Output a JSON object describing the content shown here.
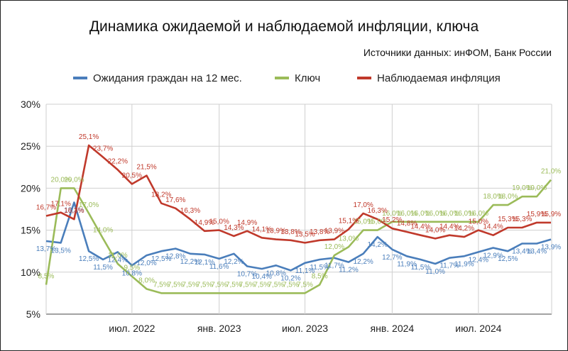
{
  "chart_data": {
    "type": "line",
    "title": "Динамика ожидаемой и наблюдаемой инфляции, ключа",
    "subtitle": "Источники данных: инФОМ, Банк России",
    "xlabel": "",
    "ylabel": "",
    "ylim": [
      5,
      30
    ],
    "y_ticks": [
      "5%",
      "10%",
      "15%",
      "20%",
      "25%",
      "30%"
    ],
    "x_tick_labels": [
      "июл. 2022",
      "янв. 2023",
      "июл. 2023",
      "янв. 2024",
      "июл. 2024"
    ],
    "grid": true,
    "legend_position": "top",
    "series": [
      {
        "name": "Ожидания граждан на 12 мес.",
        "color": "#4a7ebb",
        "x": [
          "2022-01-01",
          "2022-02-01",
          "2022-03-01",
          "2022-04-01",
          "2022-05-01",
          "2022-06-01",
          "2022-07-01",
          "2022-08-01",
          "2022-09-01",
          "2022-10-01",
          "2022-11-01",
          "2022-12-01",
          "2023-01-01",
          "2023-02-01",
          "2023-03-01",
          "2023-04-01",
          "2023-05-01",
          "2023-06-01",
          "2023-07-01",
          "2023-08-01",
          "2023-09-01",
          "2023-10-01",
          "2023-11-01",
          "2023-12-01",
          "2024-01-01",
          "2024-02-01",
          "2024-03-01",
          "2024-04-01",
          "2024-05-01",
          "2024-06-01",
          "2024-07-01",
          "2024-08-01",
          "2024-09-01",
          "2024-10-01",
          "2024-11-01",
          "2024-12-01"
        ],
        "values": [
          13.7,
          13.5,
          18.3,
          12.5,
          11.5,
          12.4,
          10.8,
          12.0,
          12.5,
          12.8,
          12.2,
          12.1,
          11.6,
          12.2,
          10.7,
          10.4,
          10.8,
          10.2,
          11.1,
          11.5,
          11.7,
          11.2,
          12.2,
          14.2,
          12.7,
          11.9,
          11.5,
          11.0,
          11.7,
          11.9,
          12.4,
          12.9,
          12.5,
          13.4,
          13.4,
          13.9
        ],
        "labels": [
          "13,7%",
          "13,5%",
          "18,3%",
          "12,5%",
          "11,5%",
          "12,4%",
          "10,8%",
          "12,0%",
          "12,5%",
          "12,8%",
          "12,2%",
          "12,1%",
          "11,6%",
          "12,2%",
          "10,7%",
          "10,4%",
          "10,8%",
          "10,2%",
          "11,1%",
          "11,5%",
          "11,7%",
          "11,2%",
          "12,2%",
          "14,2%",
          "12,7%",
          "11,9%",
          "11,5%",
          "11,0%",
          "11,7%",
          "11,9%",
          "12,4%",
          "12,9%",
          "12,5%",
          "13,4%",
          "13,4%",
          "13,9%"
        ]
      },
      {
        "name": "Ключ",
        "color": "#9bbb59",
        "x": [
          "2022-01-01",
          "2022-02-01",
          "2022-03-01",
          "2022-04-01",
          "2022-05-01",
          "2022-06-01",
          "2022-07-01",
          "2022-08-01",
          "2022-09-01",
          "2022-10-01",
          "2022-11-01",
          "2022-12-01",
          "2023-01-01",
          "2023-02-01",
          "2023-03-01",
          "2023-04-01",
          "2023-05-01",
          "2023-06-01",
          "2023-07-01",
          "2023-08-01",
          "2023-09-01",
          "2023-10-01",
          "2023-11-01",
          "2023-12-01",
          "2024-01-01",
          "2024-02-01",
          "2024-03-01",
          "2024-04-01",
          "2024-05-01",
          "2024-06-01",
          "2024-07-01",
          "2024-08-01",
          "2024-09-01",
          "2024-10-01",
          "2024-11-01",
          "2024-12-01"
        ],
        "values": [
          8.5,
          20.0,
          20.0,
          17.0,
          14.0,
          11.0,
          9.5,
          8.0,
          7.5,
          7.5,
          7.5,
          7.5,
          7.5,
          7.5,
          7.5,
          7.5,
          7.5,
          7.5,
          7.5,
          8.5,
          12.0,
          13.0,
          15.0,
          15.0,
          16.0,
          16.0,
          16.0,
          16.0,
          16.0,
          16.0,
          16.0,
          18.0,
          18.0,
          19.0,
          19.0,
          21.0
        ],
        "labels": [
          "8,5%",
          "20,0%",
          "20,0%",
          "17,0%",
          "14,0%",
          "11,0%",
          "9,5%",
          "8,0%",
          "7,5%",
          "7,5%",
          "7,5%",
          "7,5%",
          "7,5%",
          "7,5%",
          "7,5%",
          "7,5%",
          "7,5%",
          "7,5%",
          "7,5%",
          "8,5%",
          "12,0%",
          "13,0%",
          "15,0%",
          "15,0%",
          "16,0%",
          "16,0%",
          "16,0%",
          "16,0%",
          "16,0%",
          "16,0%",
          "16,0%",
          "18,0%",
          "18,0%",
          "19,0%",
          "19,0%",
          "21,0%"
        ]
      },
      {
        "name": "Наблюдаемая инфляция",
        "color": "#c0392b",
        "x": [
          "2022-01-01",
          "2022-02-01",
          "2022-03-01",
          "2022-04-01",
          "2022-05-01",
          "2022-06-01",
          "2022-07-01",
          "2022-08-01",
          "2022-09-01",
          "2022-10-01",
          "2022-11-01",
          "2022-12-01",
          "2023-01-01",
          "2023-02-01",
          "2023-03-01",
          "2023-04-01",
          "2023-05-01",
          "2023-06-01",
          "2023-07-01",
          "2023-08-01",
          "2023-09-01",
          "2023-10-01",
          "2023-11-01",
          "2023-12-01",
          "2024-01-01",
          "2024-02-01",
          "2024-03-01",
          "2024-04-01",
          "2024-05-01",
          "2024-06-01",
          "2024-07-01",
          "2024-08-01",
          "2024-09-01",
          "2024-10-01",
          "2024-11-01",
          "2024-12-01"
        ],
        "values": [
          16.7,
          17.1,
          16.3,
          25.1,
          23.7,
          22.2,
          20.5,
          21.5,
          18.2,
          17.6,
          16.3,
          14.9,
          15.0,
          14.3,
          14.9,
          14.1,
          13.9,
          13.8,
          13.5,
          13.8,
          13.9,
          15.1,
          17.0,
          16.3,
          15.2,
          14.8,
          14.4,
          14.0,
          14.4,
          14.2,
          15.0,
          14.4,
          15.3,
          15.3,
          15.9,
          15.9
        ],
        "labels": [
          "16,7%",
          "17,1%",
          "16,3%",
          "25,1%",
          "23,7%",
          "22,2%",
          "20,5%",
          "21,5%",
          "18,2%",
          "17,6%",
          "16,3%",
          "14,9%",
          "15,0%",
          "14,3%",
          "14,9%",
          "14,1%",
          "13,9%",
          "13,8%",
          "13,5%",
          "13,8%",
          "13,9%",
          "15,1%",
          "17,0%",
          "16,3%",
          "15,2%",
          "14,8%",
          "14,4%",
          "14,0%",
          "14,4%",
          "14,2%",
          "15,0%",
          "14,4%",
          "15,3%",
          "15,3%",
          "15,9%",
          "15,9%"
        ]
      }
    ]
  }
}
